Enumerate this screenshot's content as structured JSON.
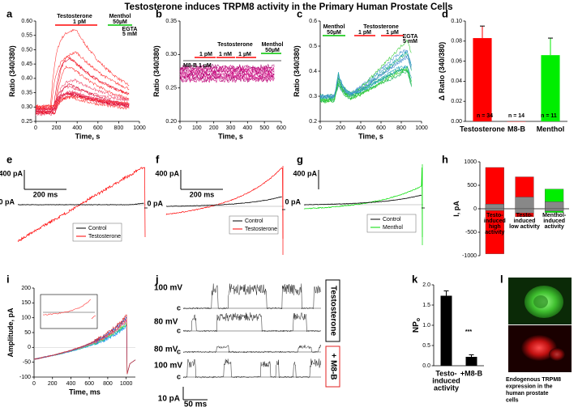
{
  "title": "Testosterone induces TRPM8 activity in the Primary Human Prostate Cells",
  "panels": [
    {
      "letter": "a",
      "type": "trace",
      "xlabel": "Time, s",
      "ylabel": "Ratio (340/380)",
      "xlim": [
        0,
        1000
      ],
      "ylim": [
        0.25,
        0.6
      ],
      "xticks": [
        0,
        200,
        400,
        600,
        800,
        1000
      ],
      "yticks": [
        0.25,
        {
          "value": 0.3,
          "label": "0.30"
        },
        0.35,
        {
          "value": 0.4,
          "label": "0.40"
        },
        0.45,
        {
          "value": 0.5,
          "label": "0.50"
        },
        0.55,
        {
          "value": 0.6,
          "label": "0.60"
        }
      ],
      "annotations": [
        "Testosterone",
        "1 pM",
        "Menthol",
        "50µM",
        "EGTA",
        "5 mM"
      ]
    },
    {
      "letter": "b",
      "type": "trace",
      "xlabel": "Time, s",
      "ylabel": "Ratio (340/380)",
      "xlim": [
        0,
        600
      ],
      "ylim": [
        0.2,
        0.35
      ],
      "xticks": [
        0,
        100,
        200,
        300,
        400,
        500,
        600
      ],
      "yticks": [
        {
          "value": 0.2,
          "label": "0.20"
        },
        0.25,
        {
          "value": 0.3,
          "label": "0.30"
        },
        0.35
      ],
      "annotations": [
        "Testosterone",
        "1 pM",
        "1 nM",
        "1 µM",
        "Menthol",
        "50µM",
        "M8-B 1 µM"
      ]
    },
    {
      "letter": "c",
      "type": "trace",
      "xlabel": "Time, s",
      "ylabel": "Ratio (340/380)",
      "xlim": [
        0,
        1000
      ],
      "ylim": [
        0.2,
        0.6
      ],
      "xticks": [
        0,
        200,
        400,
        600,
        800,
        1000
      ],
      "yticks": [
        0.2,
        0.3,
        0.4,
        0.5,
        0.6
      ],
      "annotations": [
        "Menthol",
        "50µM",
        "Testosterone",
        "1 pM",
        "1 µM",
        "EGTA",
        "5 mM"
      ]
    },
    {
      "letter": "d",
      "type": "bar",
      "ylabel": "Δ Ratio (340/380)",
      "categories": [
        "Testosterone",
        "M8-B",
        "Menthol"
      ],
      "values": [
        0.083,
        0,
        0.066
      ],
      "errors": [
        0.012,
        null,
        0.017
      ],
      "colors": [
        "#ff0000",
        "#ff0000",
        "#00ee00"
      ],
      "ylim": [
        0,
        0.1
      ],
      "yticks": [
        {
          "value": 0,
          "label": "0.00"
        },
        0.02,
        0.04,
        0.06,
        0.08,
        {
          "value": 0.1,
          "label": "0.10"
        }
      ],
      "annotations": [
        "n = 34",
        "n = 14",
        "n = 11"
      ]
    },
    {
      "letter": "e",
      "type": "ephys",
      "scale_y": "400 pA",
      "scale_x": "200 ms",
      "zero": "0 pA",
      "legend": [
        {
          "name": "Control",
          "color": "#000000"
        },
        {
          "name": "Testosterone",
          "color": "#ff0000"
        }
      ]
    },
    {
      "letter": "f",
      "type": "ephys",
      "scale_y": "400 pA",
      "scale_x": "200 ms",
      "zero": "0 pA",
      "legend": [
        {
          "name": "Control",
          "color": "#000000"
        },
        {
          "name": "Testosterone",
          "color": "#ff0000"
        }
      ]
    },
    {
      "letter": "g",
      "type": "ephys",
      "scale_y": "400 pA",
      "zero": "0 pA",
      "legend": [
        {
          "name": "Control",
          "color": "#000000"
        },
        {
          "name": "Menthol",
          "color": "#00dd00"
        }
      ]
    },
    {
      "letter": "h",
      "type": "overlay-bar",
      "ylabel": "I, pA",
      "ylim": [
        -1000,
        1000
      ],
      "yticks": [
        -1000,
        -500,
        0,
        500,
        1000
      ],
      "categories": [
        [
          "Testo-",
          "induced",
          "high",
          "activity"
        ],
        [
          "Testo-",
          "induced",
          "low activity"
        ],
        [
          "Menthol-",
          "induced",
          "activity"
        ]
      ],
      "series": [
        {
          "colors": [
            "#ff0000",
            "#ff0000",
            "#00ee00"
          ],
          "values": [
            880,
            680,
            420
          ]
        },
        {
          "color": "#888888",
          "values": [
            100,
            250,
            150
          ]
        },
        {
          "colors": [
            "#ff0000",
            "#ff0000",
            "#00ee00"
          ],
          "values": [
            -960,
            -170,
            -80
          ]
        },
        {
          "color": "#888888",
          "values": [
            -40,
            -90,
            -50
          ]
        }
      ]
    },
    {
      "letter": "i",
      "type": "iv",
      "xlabel": "Time, ms",
      "ylabel": "Amplitude, pA",
      "xlim": [
        0,
        1100
      ],
      "ylim": [
        -100,
        200
      ],
      "xticks": [
        0,
        200,
        400,
        600,
        800,
        1000
      ],
      "yticks": [
        -100,
        -50,
        0,
        50,
        100,
        150,
        200
      ]
    },
    {
      "letter": "j",
      "type": "single-channel",
      "rows": [
        "100 mV",
        "80 mV",
        "80 mV",
        "100 mV"
      ],
      "closed": "c",
      "boxes": [
        "Testosterone",
        "+ M8-B"
      ],
      "scale_y": "10 pA",
      "scale_x": "50 ms"
    },
    {
      "letter": "k",
      "type": "bar",
      "ylabel": "NP",
      "ylabel_sub": "o",
      "categories": [
        [
          "Testo-",
          "induced",
          "activity"
        ],
        [
          "+M8-B"
        ]
      ],
      "values": [
        1.73,
        0.22
      ],
      "errors": [
        0.12,
        0.05
      ],
      "colors": [
        "#000000",
        "#000000"
      ],
      "ylim": [
        0,
        2
      ],
      "yticks": [
        {
          "value": 0,
          "label": "0.0"
        },
        0.5,
        {
          "value": 1,
          "label": "1.0"
        },
        1.5,
        {
          "value": 2,
          "label": "2.0"
        }
      ],
      "annotations": [
        "***"
      ]
    },
    {
      "letter": "l",
      "type": "image",
      "caption": [
        "Endogenous TRPM8",
        "expression in the",
        "human prostate",
        "cells"
      ]
    }
  ]
}
